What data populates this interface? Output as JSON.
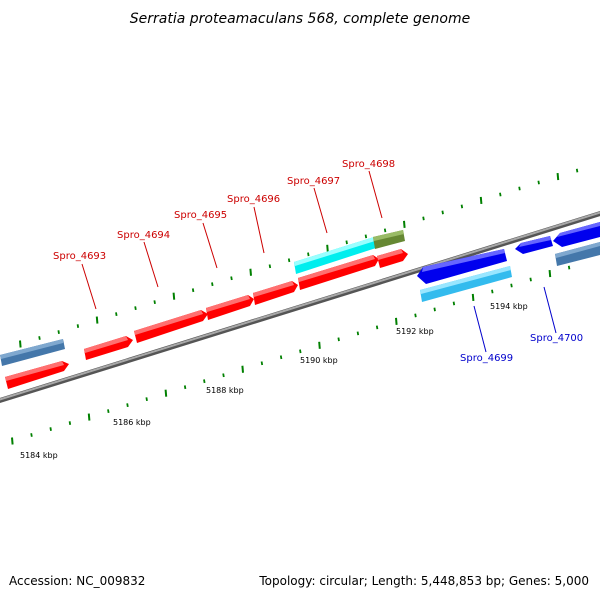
{
  "title": "Serratia proteamaculans 568, complete genome",
  "footer": {
    "accession": "Accession: NC_009832",
    "summary": "Topology: circular; Length: 5,448,853 bp; Genes: 5,000"
  },
  "colors": {
    "forward_gene": "#ff0000",
    "reverse_gene": "#0000ee",
    "forward_label": "#cc0000",
    "reverse_label": "#0000cc",
    "rna_gene": "#00eeee",
    "rna_gene_reverse": "#33ccee",
    "pseudo_gene": "#668833",
    "other_gene": "#4477aa",
    "backbone": "#808080",
    "tick": "#008000"
  },
  "genes": [
    {
      "id": "g-left-other",
      "label": "",
      "strand": "forward",
      "kind": "other"
    },
    {
      "id": "g-left-red",
      "label": "",
      "strand": "forward",
      "kind": "cds"
    },
    {
      "id": "Spro_4693",
      "label": "Spro_4693",
      "strand": "forward",
      "kind": "cds"
    },
    {
      "id": "Spro_4694",
      "label": "Spro_4694",
      "strand": "forward",
      "kind": "cds"
    },
    {
      "id": "Spro_4695",
      "label": "Spro_4695",
      "strand": "forward",
      "kind": "cds"
    },
    {
      "id": "Spro_4696",
      "label": "Spro_4696",
      "strand": "forward",
      "kind": "cds"
    },
    {
      "id": "Spro_4697",
      "label": "Spro_4697",
      "strand": "forward",
      "kind": "cds"
    },
    {
      "id": "Spro_4697-rna",
      "label": "",
      "strand": "forward",
      "kind": "rna"
    },
    {
      "id": "Spro_4698",
      "label": "Spro_4698",
      "strand": "forward",
      "kind": "cds"
    },
    {
      "id": "Spro_4698-pseudo",
      "label": "",
      "strand": "forward",
      "kind": "pseudo"
    },
    {
      "id": "g-rev-1",
      "label": "",
      "strand": "reverse",
      "kind": "cds"
    },
    {
      "id": "Spro_4699",
      "label": "Spro_4699",
      "strand": "reverse",
      "kind": "rna"
    },
    {
      "id": "g-rev-2",
      "label": "",
      "strand": "reverse",
      "kind": "cds"
    },
    {
      "id": "Spro_4700",
      "label": "Spro_4700",
      "strand": "reverse",
      "kind": "cds"
    },
    {
      "id": "g-rev-other",
      "label": "",
      "strand": "reverse",
      "kind": "other"
    }
  ],
  "ticks": [
    {
      "label": "5184 kbp"
    },
    {
      "label": "5186 kbp"
    },
    {
      "label": "5188 kbp"
    },
    {
      "label": "5190 kbp"
    },
    {
      "label": "5192 kbp"
    },
    {
      "label": "5194 kbp"
    }
  ]
}
